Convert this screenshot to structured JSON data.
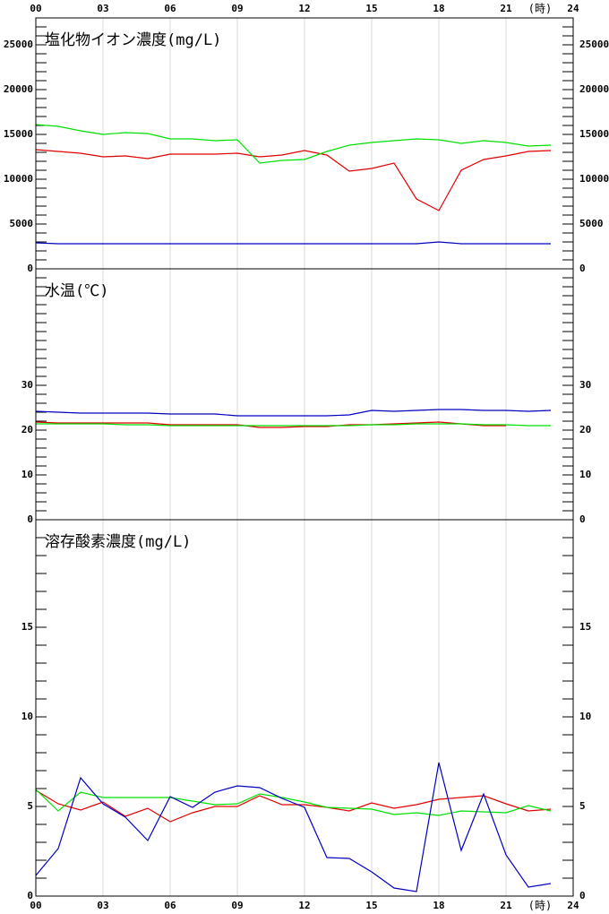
{
  "chart_data": [
    {
      "type": "line",
      "title": "塩化物イオン濃度(mg/L)",
      "x": [
        0,
        1,
        2,
        3,
        4,
        5,
        6,
        7,
        8,
        9,
        10,
        11,
        12,
        13,
        14,
        15,
        16,
        17,
        18,
        19,
        20,
        21,
        22,
        23
      ],
      "xlim": [
        0,
        24
      ],
      "xticks": [
        {
          "value": 0,
          "label": "00"
        },
        {
          "value": 3,
          "label": "03"
        },
        {
          "value": 6,
          "label": "06"
        },
        {
          "value": 9,
          "label": "09"
        },
        12,
        15,
        18,
        21,
        24
      ],
      "x_unit_label": "(時)",
      "ylim": [
        0,
        28000
      ],
      "yticks": [
        0,
        5000,
        10000,
        15000,
        20000,
        25000
      ],
      "minor_ytick_step": 1000,
      "grid": true,
      "series": [
        {
          "color": "#e00000",
          "values": [
            13300,
            13100,
            12900,
            12500,
            12600,
            12300,
            12800,
            12800,
            12800,
            12900,
            12500,
            12700,
            13200,
            12700,
            10900,
            11200,
            11800,
            7800,
            6500,
            11000,
            12200,
            12600,
            13100,
            13200
          ]
        },
        {
          "color": "#00e000",
          "values": [
            16100,
            15900,
            15400,
            15000,
            15200,
            15100,
            14500,
            14500,
            14300,
            14400,
            11800,
            12100,
            12200,
            13100,
            13800,
            14100,
            14300,
            14500,
            14400,
            14000,
            14300,
            14100,
            13700,
            13800
          ]
        },
        {
          "color": "#0000c0",
          "values": [
            2900,
            2800,
            2800,
            2800,
            2800,
            2800,
            2800,
            2800,
            2800,
            2800,
            2800,
            2800,
            2800,
            2800,
            2800,
            2800,
            2800,
            2800,
            3000,
            2800,
            2800,
            2800,
            2800,
            2800
          ]
        }
      ]
    },
    {
      "type": "line",
      "title": "水温(℃)",
      "x": [
        0,
        1,
        2,
        3,
        4,
        5,
        6,
        7,
        8,
        9,
        10,
        11,
        12,
        13,
        14,
        15,
        16,
        17,
        18,
        19,
        20,
        21,
        22,
        23
      ],
      "xlim": [
        0,
        24
      ],
      "xticks": [
        0,
        3,
        6,
        9,
        12,
        15,
        18,
        21,
        24
      ],
      "ylim": [
        0,
        56
      ],
      "yticks": [
        0,
        10,
        20,
        30
      ],
      "minor_ytick_step": 2,
      "grid": true,
      "series": [
        {
          "color": "#e00000",
          "values": [
            21.8,
            21.6,
            21.6,
            21.6,
            21.6,
            21.6,
            21.2,
            21.2,
            21.2,
            21.2,
            20.6,
            20.6,
            20.8,
            20.8,
            21.2,
            21.2,
            21.4,
            21.6,
            21.8,
            21.4,
            21.0,
            21.0,
            null,
            null
          ]
        },
        {
          "color": "#00e000",
          "values": [
            21.4,
            21.4,
            21.4,
            21.4,
            21.2,
            21.2,
            21.0,
            21.0,
            21.0,
            21.0,
            21.0,
            21.0,
            21.0,
            21.0,
            21.0,
            21.2,
            21.2,
            21.4,
            21.4,
            21.4,
            21.2,
            21.2,
            21.0,
            21.0
          ]
        },
        {
          "color": "#0000c0",
          "values": [
            24.2,
            24.0,
            23.8,
            23.8,
            23.8,
            23.8,
            23.6,
            23.6,
            23.6,
            23.2,
            23.2,
            23.2,
            23.2,
            23.2,
            23.4,
            24.4,
            24.2,
            24.4,
            24.6,
            24.6,
            24.4,
            24.4,
            24.2,
            24.4
          ]
        }
      ]
    },
    {
      "type": "line",
      "title": "溶存酸素濃度(mg/L)",
      "x": [
        0,
        1,
        2,
        3,
        4,
        5,
        6,
        7,
        8,
        9,
        10,
        11,
        12,
        13,
        14,
        15,
        16,
        17,
        18,
        19,
        20,
        21,
        22,
        23
      ],
      "xlim": [
        0,
        24
      ],
      "xticks": [
        {
          "value": 0,
          "label": "00"
        },
        {
          "value": 3,
          "label": "03"
        },
        {
          "value": 6,
          "label": "06"
        },
        {
          "value": 9,
          "label": "09"
        },
        12,
        15,
        18,
        21,
        24
      ],
      "x_unit_label": "(時)",
      "ylim": [
        0,
        21
      ],
      "yticks": [
        0,
        5,
        10,
        15
      ],
      "minor_ytick_step": 1,
      "grid": true,
      "series": [
        {
          "color": "#e00000",
          "values": [
            5.9,
            5.15,
            4.8,
            5.25,
            4.45,
            4.9,
            4.15,
            4.65,
            5.0,
            5.0,
            5.6,
            5.1,
            5.1,
            4.95,
            4.75,
            5.2,
            4.9,
            5.1,
            5.4,
            5.5,
            5.6,
            5.15,
            4.75,
            4.85
          ]
        },
        {
          "color": "#00e000",
          "values": [
            5.95,
            4.75,
            5.8,
            5.5,
            5.5,
            5.5,
            5.5,
            5.3,
            5.1,
            5.15,
            5.7,
            5.5,
            5.25,
            4.95,
            4.9,
            4.85,
            4.55,
            4.65,
            4.5,
            4.75,
            4.7,
            4.65,
            5.05,
            4.75
          ]
        },
        {
          "color": "#0000c0",
          "values": [
            1.15,
            2.65,
            6.6,
            5.15,
            4.4,
            3.1,
            5.55,
            4.95,
            5.8,
            6.15,
            6.05,
            5.45,
            4.95,
            2.15,
            2.1,
            1.35,
            0.45,
            0.25,
            7.45,
            2.55,
            5.7,
            2.3,
            0.5,
            0.7
          ]
        }
      ]
    }
  ]
}
